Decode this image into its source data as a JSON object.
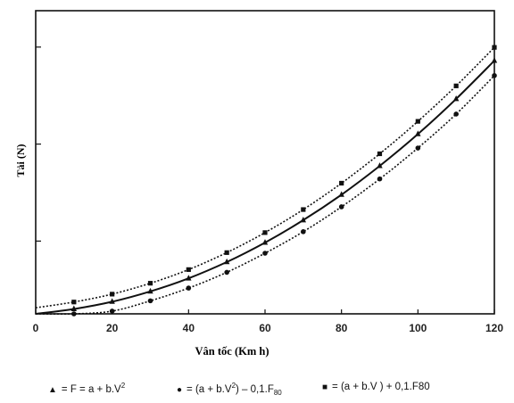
{
  "chart_data": {
    "type": "line",
    "title": "",
    "xlabel": "Vân tốc    (Km h)",
    "ylabel": "Tải   (N)",
    "xlim": [
      0,
      120
    ],
    "ylim": [
      0,
      1
    ],
    "xticks": [
      0,
      20,
      40,
      60,
      80,
      100,
      120
    ],
    "x": [
      0,
      10,
      20,
      30,
      40,
      50,
      60,
      70,
      80,
      90,
      100,
      110,
      120
    ],
    "series": [
      {
        "name": "F = a + b.V²",
        "marker": "triangle",
        "style": "solid",
        "values": [
          0.0,
          0.016,
          0.04,
          0.074,
          0.117,
          0.171,
          0.235,
          0.309,
          0.393,
          0.488,
          0.593,
          0.709,
          0.835
        ]
      },
      {
        "name": "(a + b.V²) – 0,1.F80",
        "marker": "circle",
        "style": "dotted",
        "values": [
          -0.03,
          -0.016,
          0.009,
          0.043,
          0.085,
          0.137,
          0.2,
          0.271,
          0.353,
          0.445,
          0.547,
          0.659,
          0.786
        ]
      },
      {
        "name": "(a + b.V    ) + 0,1.F80",
        "marker": "square",
        "style": "dotted",
        "values": [
          0.02,
          0.039,
          0.065,
          0.101,
          0.146,
          0.202,
          0.268,
          0.344,
          0.431,
          0.528,
          0.635,
          0.752,
          0.879
        ]
      }
    ],
    "grid": false,
    "legend_position": "bottom"
  },
  "legend": {
    "item1": {
      "marker": "▲",
      "text": "= F = a + b.V",
      "sup": "2"
    },
    "item2": {
      "marker": "●",
      "text_a": "= (a + b.V",
      "sup": "2",
      "text_b": ") – 0,1.F",
      "sub": "80"
    },
    "item3": {
      "marker": "■",
      "text": "= (a + b.V    ) + 0,1.F80"
    }
  }
}
